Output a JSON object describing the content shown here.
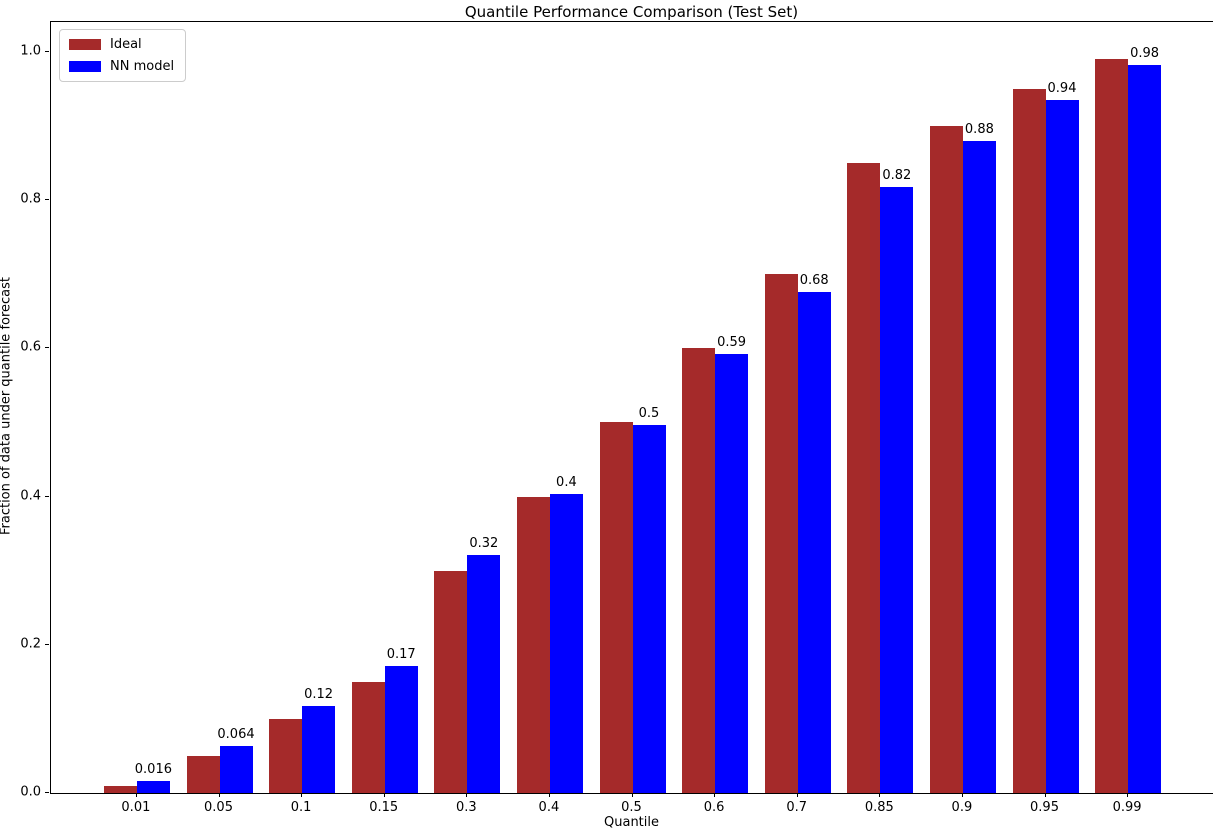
{
  "window": {
    "title": "Quantile Performance Comparison (Test Set)"
  },
  "chart_data": {
    "type": "bar",
    "title": "Quantile Performance Comparison (Test Set)",
    "xlabel": "Quantile",
    "ylabel": "Fraction of data under quantile forecast",
    "categories": [
      "0.01",
      "0.05",
      "0.1",
      "0.15",
      "0.3",
      "0.4",
      "0.5",
      "0.6",
      "0.7",
      "0.85",
      "0.9",
      "0.95",
      "0.99"
    ],
    "series": [
      {
        "name": "Ideal",
        "color": "#A52A2A",
        "values": [
          0.01,
          0.05,
          0.1,
          0.15,
          0.3,
          0.4,
          0.5,
          0.6,
          0.7,
          0.85,
          0.9,
          0.95,
          0.99
        ],
        "labels": null
      },
      {
        "name": "NN model",
        "color": "#0000FF",
        "values": [
          0.016,
          0.064,
          0.117,
          0.171,
          0.321,
          0.403,
          0.497,
          0.592,
          0.676,
          0.817,
          0.879,
          0.935,
          0.982
        ],
        "labels": [
          "0.016",
          "0.064",
          "0.12",
          "0.17",
          "0.32",
          "0.4",
          "0.5",
          "0.59",
          "0.68",
          "0.82",
          "0.88",
          "0.94",
          "0.98"
        ]
      }
    ],
    "yticks": [
      {
        "value": 0.0,
        "label": "0.0"
      },
      {
        "value": 0.2,
        "label": "0.2"
      },
      {
        "value": 0.4,
        "label": "0.4"
      },
      {
        "value": 0.6,
        "label": "0.6"
      },
      {
        "value": 0.8,
        "label": "0.8"
      },
      {
        "value": 1.0,
        "label": "1.0"
      }
    ],
    "ylim": [
      0,
      1.04
    ],
    "grid": false,
    "legend_position": "upper left",
    "bar_group_width": 0.8,
    "background_color": "#ffffff",
    "spine_color": "#000000"
  }
}
